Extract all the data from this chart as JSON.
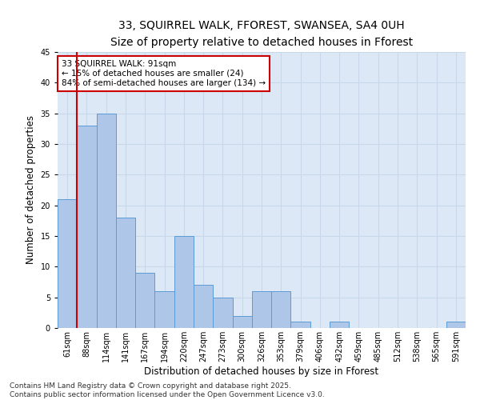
{
  "title_line1": "33, SQUIRREL WALK, FFOREST, SWANSEA, SA4 0UH",
  "title_line2": "Size of property relative to detached houses in Fforest",
  "xlabel": "Distribution of detached houses by size in Fforest",
  "ylabel": "Number of detached properties",
  "categories": [
    "61sqm",
    "88sqm",
    "114sqm",
    "141sqm",
    "167sqm",
    "194sqm",
    "220sqm",
    "247sqm",
    "273sqm",
    "300sqm",
    "326sqm",
    "353sqm",
    "379sqm",
    "406sqm",
    "432sqm",
    "459sqm",
    "485sqm",
    "512sqm",
    "538sqm",
    "565sqm",
    "591sqm"
  ],
  "values": [
    21,
    33,
    35,
    18,
    9,
    6,
    15,
    7,
    5,
    2,
    6,
    6,
    1,
    0,
    1,
    0,
    0,
    0,
    0,
    0,
    1
  ],
  "bar_color": "#aec6e8",
  "bar_edge_color": "#5b9bd5",
  "grid_color": "#c8d8ea",
  "background_color": "#dce8f5",
  "annotation_text": "33 SQUIRREL WALK: 91sqm\n← 15% of detached houses are smaller (24)\n84% of semi-detached houses are larger (134) →",
  "annotation_box_color": "#ffffff",
  "annotation_box_edge_color": "#cc0000",
  "vline_color": "#cc0000",
  "vline_xindex": 1,
  "ylim": [
    0,
    45
  ],
  "yticks": [
    0,
    5,
    10,
    15,
    20,
    25,
    30,
    35,
    40,
    45
  ],
  "footer_text": "Contains HM Land Registry data © Crown copyright and database right 2025.\nContains public sector information licensed under the Open Government Licence v3.0.",
  "title_fontsize": 10,
  "subtitle_fontsize": 9,
  "axis_label_fontsize": 8.5,
  "tick_fontsize": 7,
  "annotation_fontsize": 7.5,
  "footer_fontsize": 6.5
}
